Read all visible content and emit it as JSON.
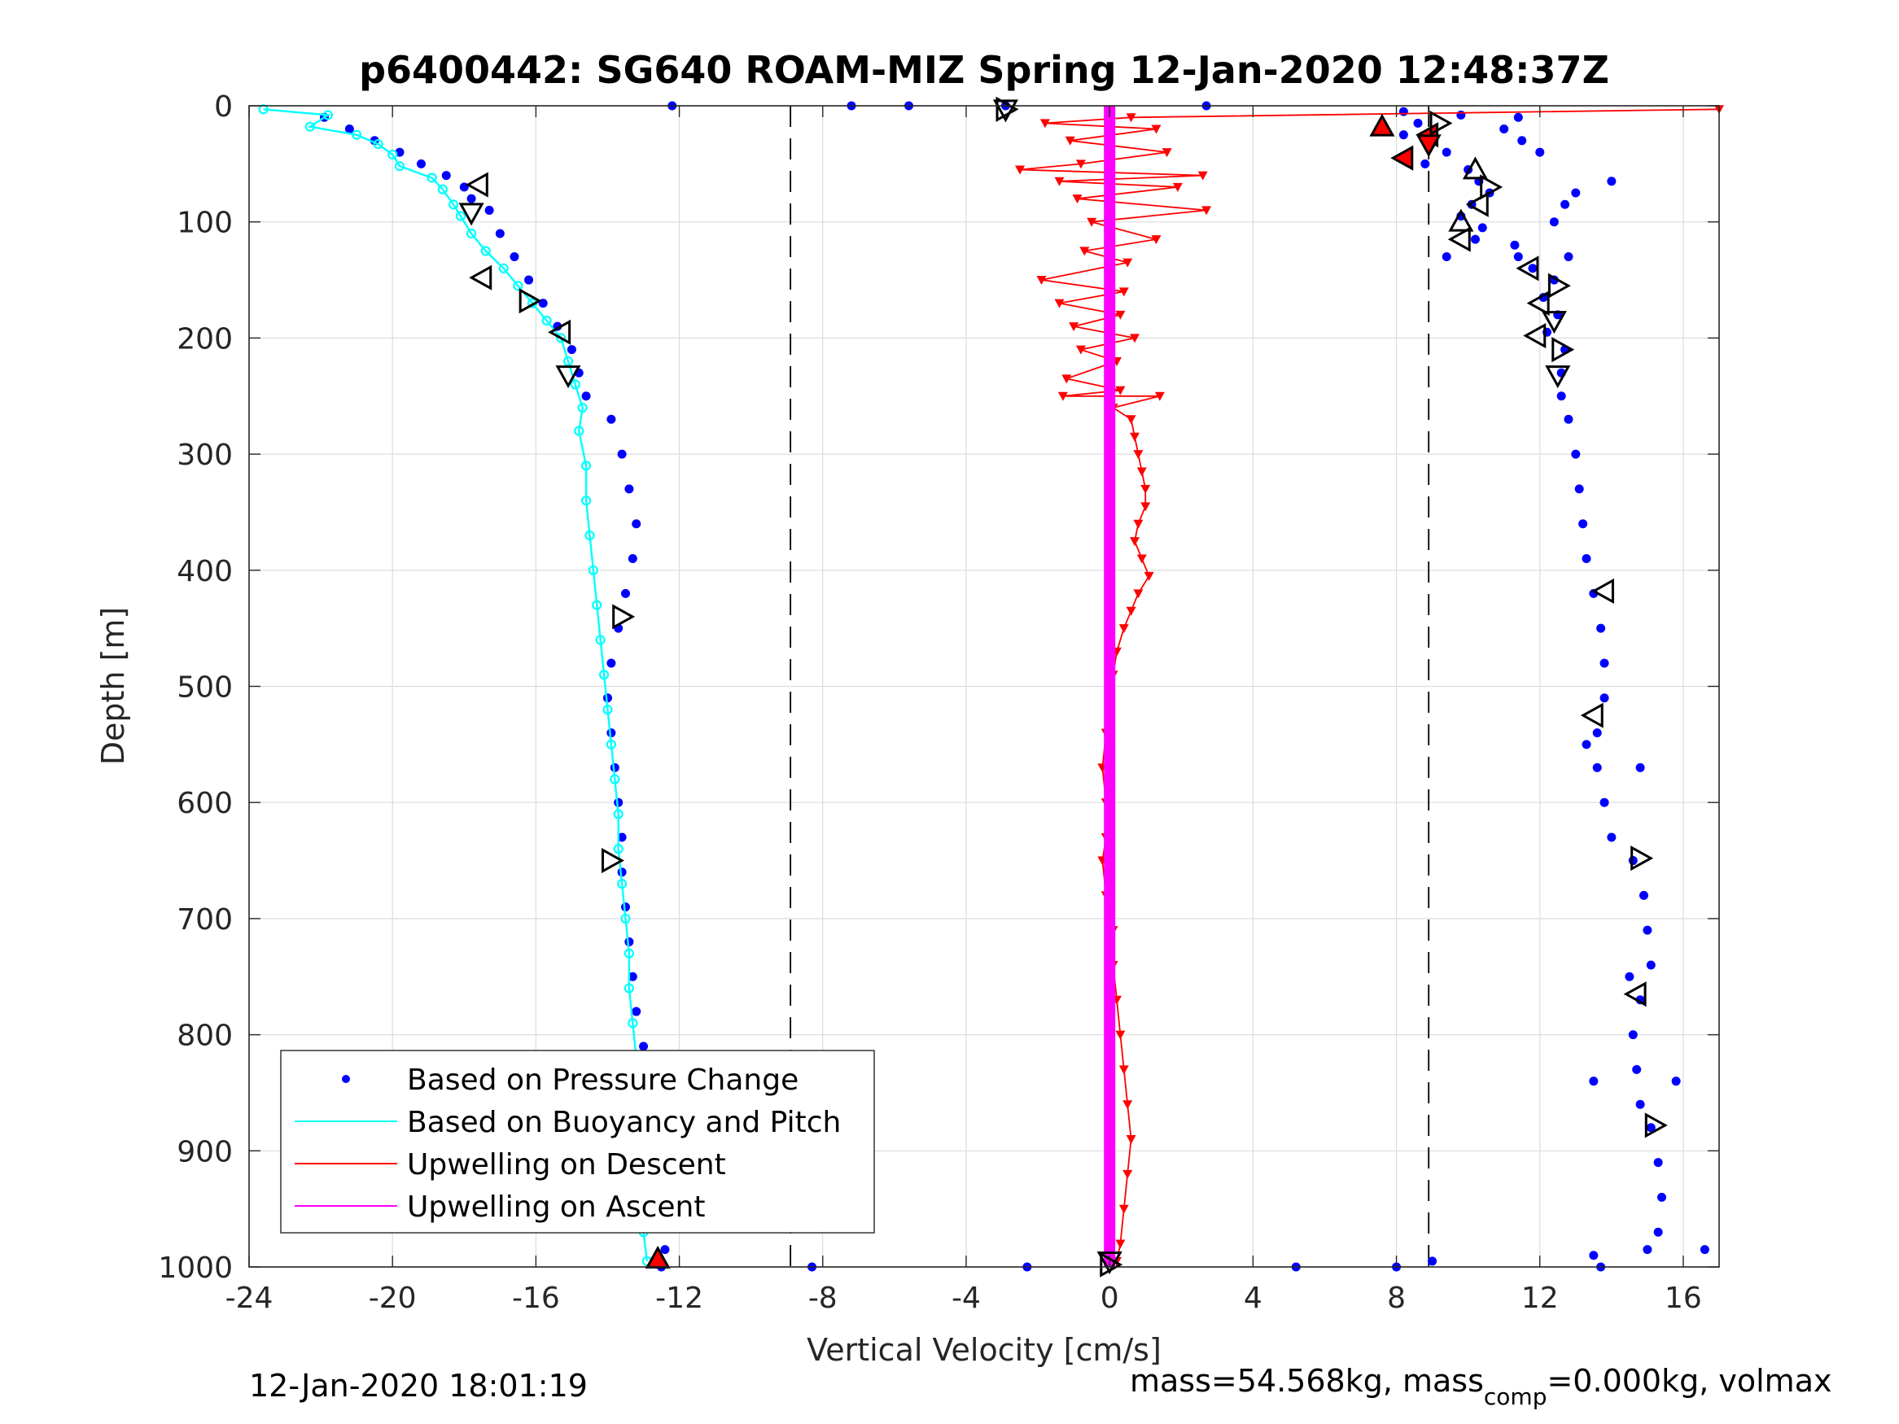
{
  "chart_data": {
    "type": "scatter",
    "title": "p6400442: SG640 ROAM-MIZ Spring 12-Jan-2020 12:48:37Z",
    "xlabel": "Vertical Velocity [cm/s]",
    "ylabel": "Depth [m]",
    "xlim": [
      -24,
      17
    ],
    "ylim": [
      1000,
      0
    ],
    "y_reversed": true,
    "grid": true,
    "xticks": [
      "-24",
      "-20",
      "-16",
      "-12",
      "-8",
      "-4",
      "0",
      "4",
      "8",
      "12",
      "16"
    ],
    "yticks": [
      "0",
      "100",
      "200",
      "300",
      "400",
      "500",
      "600",
      "700",
      "800",
      "900",
      "1000"
    ],
    "reference_lines_x": [
      -8.9,
      8.9
    ],
    "legend": {
      "placement": "bottom-left",
      "entries": [
        {
          "label": "Based on Pressure Change",
          "color": "#0000ff",
          "marker": "dot"
        },
        {
          "label": "Based on Buoyancy and Pitch",
          "color": "#00ffff",
          "marker": "line"
        },
        {
          "label": "Upwelling on Descent",
          "color": "#ff0000",
          "marker": "line"
        },
        {
          "label": "Upwelling on Ascent",
          "color": "#ff00ff",
          "marker": "line"
        }
      ]
    },
    "series": [
      {
        "name": "Based on Pressure Change",
        "color": "#0000ff",
        "style": "dots",
        "points": [
          [
            -21.9,
            10
          ],
          [
            -21.2,
            20
          ],
          [
            -20.5,
            30
          ],
          [
            -19.8,
            40
          ],
          [
            -19.2,
            50
          ],
          [
            -18.5,
            60
          ],
          [
            -18.0,
            70
          ],
          [
            -17.8,
            80
          ],
          [
            -17.3,
            90
          ],
          [
            -17.0,
            110
          ],
          [
            -16.6,
            130
          ],
          [
            -16.2,
            150
          ],
          [
            -15.8,
            170
          ],
          [
            -15.4,
            190
          ],
          [
            -15.0,
            210
          ],
          [
            -14.8,
            230
          ],
          [
            -14.6,
            250
          ],
          [
            -13.9,
            270
          ],
          [
            -13.6,
            300
          ],
          [
            -13.4,
            330
          ],
          [
            -13.2,
            360
          ],
          [
            -13.3,
            390
          ],
          [
            -13.5,
            420
          ],
          [
            -13.7,
            450
          ],
          [
            -13.9,
            480
          ],
          [
            -14.0,
            510
          ],
          [
            -13.9,
            540
          ],
          [
            -13.8,
            570
          ],
          [
            -13.7,
            600
          ],
          [
            -13.6,
            630
          ],
          [
            -13.6,
            660
          ],
          [
            -13.5,
            690
          ],
          [
            -13.4,
            720
          ],
          [
            -13.3,
            750
          ],
          [
            -13.2,
            780
          ],
          [
            -13.0,
            810
          ],
          [
            -12.9,
            840
          ],
          [
            -12.8,
            870
          ],
          [
            -12.7,
            900
          ],
          [
            -12.6,
            930
          ],
          [
            -12.5,
            960
          ],
          [
            -12.4,
            985
          ],
          [
            -12.5,
            1000
          ],
          [
            -12.2,
            0
          ],
          [
            -8.3,
            1000
          ],
          [
            -7.2,
            0
          ],
          [
            -5.6,
            0
          ],
          [
            -2.9,
            0
          ],
          [
            -2.3,
            1000
          ],
          [
            5.2,
            1000
          ],
          [
            2.7,
            0
          ],
          [
            8.0,
            1000
          ],
          [
            9.0,
            995
          ],
          [
            16.6,
            985
          ],
          [
            13.5,
            990
          ],
          [
            8.2,
            5
          ],
          [
            8.6,
            15
          ],
          [
            8.2,
            25
          ],
          [
            8.9,
            30
          ],
          [
            9.4,
            40
          ],
          [
            8.8,
            50
          ],
          [
            10.0,
            55
          ],
          [
            10.3,
            65
          ],
          [
            10.6,
            75
          ],
          [
            10.1,
            85
          ],
          [
            9.8,
            95
          ],
          [
            10.4,
            105
          ],
          [
            10.2,
            115
          ],
          [
            11.4,
            130
          ],
          [
            11.8,
            140
          ],
          [
            12.4,
            150
          ],
          [
            12.1,
            165
          ],
          [
            12.5,
            180
          ],
          [
            12.2,
            195
          ],
          [
            12.7,
            210
          ],
          [
            12.6,
            230
          ],
          [
            12.6,
            250
          ],
          [
            12.8,
            270
          ],
          [
            13.0,
            300
          ],
          [
            13.1,
            330
          ],
          [
            13.2,
            360
          ],
          [
            13.3,
            390
          ],
          [
            13.5,
            420
          ],
          [
            13.7,
            450
          ],
          [
            13.8,
            480
          ],
          [
            13.8,
            510
          ],
          [
            13.6,
            540
          ],
          [
            13.6,
            570
          ],
          [
            13.8,
            600
          ],
          [
            14.0,
            630
          ],
          [
            14.6,
            650
          ],
          [
            14.9,
            680
          ],
          [
            15.0,
            710
          ],
          [
            15.1,
            740
          ],
          [
            14.8,
            770
          ],
          [
            14.6,
            800
          ],
          [
            14.7,
            830
          ],
          [
            14.8,
            860
          ],
          [
            15.1,
            880
          ],
          [
            15.3,
            910
          ],
          [
            15.4,
            940
          ],
          [
            15.3,
            970
          ],
          [
            15.0,
            985
          ],
          [
            13.5,
            840
          ],
          [
            14.5,
            750
          ],
          [
            15.8,
            840
          ],
          [
            13.7,
            1000
          ],
          [
            14.8,
            570
          ],
          [
            13.3,
            550
          ],
          [
            7.5,
            20
          ],
          [
            9.8,
            8
          ],
          [
            11.0,
            20
          ],
          [
            11.5,
            30
          ],
          [
            12.0,
            40
          ],
          [
            11.4,
            10
          ],
          [
            14.0,
            65
          ],
          [
            13.0,
            75
          ],
          [
            12.4,
            100
          ],
          [
            9.4,
            130
          ],
          [
            12.7,
            85
          ],
          [
            11.3,
            120
          ],
          [
            12.8,
            130
          ]
        ]
      },
      {
        "name": "Based on Buoyancy and Pitch",
        "color": "#00ffff",
        "style": "line-dots",
        "points": [
          [
            -23.6,
            3
          ],
          [
            -21.8,
            8
          ],
          [
            -22.3,
            18
          ],
          [
            -21.0,
            25
          ],
          [
            -20.4,
            33
          ],
          [
            -20.0,
            42
          ],
          [
            -19.8,
            52
          ],
          [
            -18.9,
            62
          ],
          [
            -18.6,
            72
          ],
          [
            -18.3,
            85
          ],
          [
            -18.1,
            95
          ],
          [
            -17.8,
            110
          ],
          [
            -17.4,
            125
          ],
          [
            -16.9,
            140
          ],
          [
            -16.5,
            155
          ],
          [
            -16.1,
            170
          ],
          [
            -15.7,
            185
          ],
          [
            -15.3,
            200
          ],
          [
            -15.1,
            220
          ],
          [
            -14.9,
            240
          ],
          [
            -14.7,
            260
          ],
          [
            -14.8,
            280
          ],
          [
            -14.6,
            310
          ],
          [
            -14.6,
            340
          ],
          [
            -14.5,
            370
          ],
          [
            -14.4,
            400
          ],
          [
            -14.3,
            430
          ],
          [
            -14.2,
            460
          ],
          [
            -14.1,
            490
          ],
          [
            -14.0,
            520
          ],
          [
            -13.9,
            550
          ],
          [
            -13.8,
            580
          ],
          [
            -13.7,
            610
          ],
          [
            -13.7,
            640
          ],
          [
            -13.6,
            670
          ],
          [
            -13.5,
            700
          ],
          [
            -13.4,
            730
          ],
          [
            -13.4,
            760
          ],
          [
            -13.3,
            790
          ],
          [
            -13.2,
            820
          ],
          [
            -13.2,
            850
          ],
          [
            -13.1,
            880
          ],
          [
            -13.0,
            910
          ],
          [
            -13.0,
            940
          ],
          [
            -13.0,
            970
          ],
          [
            -12.9,
            995
          ]
        ]
      },
      {
        "name": "Upwelling on Descent",
        "color": "#ff0000",
        "style": "line-triangles",
        "points": [
          [
            17.0,
            3
          ],
          [
            0.6,
            10
          ],
          [
            -1.8,
            15
          ],
          [
            1.3,
            20
          ],
          [
            -1.1,
            30
          ],
          [
            1.6,
            40
          ],
          [
            -0.8,
            50
          ],
          [
            -2.5,
            55
          ],
          [
            2.6,
            60
          ],
          [
            -1.4,
            65
          ],
          [
            1.9,
            70
          ],
          [
            -0.9,
            80
          ],
          [
            2.7,
            90
          ],
          [
            -0.5,
            100
          ],
          [
            1.3,
            115
          ],
          [
            -0.7,
            125
          ],
          [
            0.5,
            135
          ],
          [
            -1.9,
            150
          ],
          [
            0.4,
            160
          ],
          [
            -1.4,
            170
          ],
          [
            0.3,
            180
          ],
          [
            -1.0,
            190
          ],
          [
            0.7,
            200
          ],
          [
            -0.8,
            210
          ],
          [
            0.2,
            220
          ],
          [
            -1.2,
            235
          ],
          [
            0.3,
            245
          ],
          [
            -1.3,
            250
          ],
          [
            1.4,
            250
          ],
          [
            0.1,
            260
          ],
          [
            0.6,
            270
          ],
          [
            0.7,
            285
          ],
          [
            0.8,
            300
          ],
          [
            0.9,
            315
          ],
          [
            1.0,
            330
          ],
          [
            1.0,
            345
          ],
          [
            0.8,
            360
          ],
          [
            0.7,
            375
          ],
          [
            0.9,
            390
          ],
          [
            1.1,
            405
          ],
          [
            0.8,
            420
          ],
          [
            0.6,
            435
          ],
          [
            0.4,
            450
          ],
          [
            0.2,
            470
          ],
          [
            0.1,
            490
          ],
          [
            0.0,
            510
          ],
          [
            -0.1,
            540
          ],
          [
            -0.2,
            570
          ],
          [
            -0.1,
            600
          ],
          [
            -0.1,
            630
          ],
          [
            -0.2,
            650
          ],
          [
            -0.1,
            680
          ],
          [
            0.1,
            710
          ],
          [
            0.1,
            740
          ],
          [
            0.2,
            770
          ],
          [
            0.3,
            800
          ],
          [
            0.4,
            830
          ],
          [
            0.5,
            860
          ],
          [
            0.6,
            890
          ],
          [
            0.5,
            920
          ],
          [
            0.4,
            950
          ],
          [
            0.3,
            980
          ],
          [
            0.2,
            995
          ]
        ]
      },
      {
        "name": "Upwelling on Ascent",
        "color": "#ff00ff",
        "style": "thick-line",
        "points": [
          [
            0.0,
            0
          ],
          [
            0.0,
            100
          ],
          [
            0.0,
            200
          ],
          [
            0.0,
            300
          ],
          [
            0.0,
            400
          ],
          [
            0.0,
            500
          ],
          [
            0.0,
            600
          ],
          [
            0.0,
            700
          ],
          [
            0.0,
            800
          ],
          [
            0.0,
            900
          ],
          [
            0.0,
            1000
          ]
        ]
      }
    ],
    "markers": [
      {
        "x": -17.6,
        "y": 68,
        "kind": "left",
        "fill": "none"
      },
      {
        "x": -17.8,
        "y": 92,
        "kind": "down",
        "fill": "none"
      },
      {
        "x": -17.5,
        "y": 148,
        "kind": "left",
        "fill": "none"
      },
      {
        "x": -16.2,
        "y": 168,
        "kind": "right",
        "fill": "none"
      },
      {
        "x": -15.3,
        "y": 195,
        "kind": "left",
        "fill": "none"
      },
      {
        "x": -15.1,
        "y": 232,
        "kind": "down",
        "fill": "none"
      },
      {
        "x": -13.6,
        "y": 440,
        "kind": "right",
        "fill": "none"
      },
      {
        "x": -13.9,
        "y": 650,
        "kind": "right",
        "fill": "none"
      },
      {
        "x": -12.6,
        "y": 993,
        "kind": "up",
        "fill": "#ff0000"
      },
      {
        "x": -2.9,
        "y": 3,
        "kind": "right",
        "fill": "none"
      },
      {
        "x": -2.9,
        "y": 3,
        "kind": "down",
        "fill": "none"
      },
      {
        "x": 0.0,
        "y": 995,
        "kind": "down",
        "fill": "none"
      },
      {
        "x": 0.0,
        "y": 998,
        "kind": "right",
        "fill": "none"
      },
      {
        "x": 7.6,
        "y": 18,
        "kind": "up",
        "fill": "#ff0000"
      },
      {
        "x": 8.9,
        "y": 25,
        "kind": "left",
        "fill": "#ff0000"
      },
      {
        "x": 8.2,
        "y": 45,
        "kind": "left",
        "fill": "#ff0000"
      },
      {
        "x": 8.9,
        "y": 33,
        "kind": "down",
        "fill": "#ff0000"
      },
      {
        "x": 9.2,
        "y": 15,
        "kind": "right",
        "fill": "none"
      },
      {
        "x": 10.2,
        "y": 55,
        "kind": "up",
        "fill": "none"
      },
      {
        "x": 10.6,
        "y": 70,
        "kind": "right",
        "fill": "none"
      },
      {
        "x": 10.3,
        "y": 85,
        "kind": "left",
        "fill": "none"
      },
      {
        "x": 9.8,
        "y": 100,
        "kind": "up",
        "fill": "none"
      },
      {
        "x": 9.8,
        "y": 115,
        "kind": "left",
        "fill": "none"
      },
      {
        "x": 11.7,
        "y": 140,
        "kind": "left",
        "fill": "none"
      },
      {
        "x": 12.5,
        "y": 155,
        "kind": "right",
        "fill": "none"
      },
      {
        "x": 12.0,
        "y": 170,
        "kind": "left",
        "fill": "none"
      },
      {
        "x": 12.4,
        "y": 185,
        "kind": "down",
        "fill": "none"
      },
      {
        "x": 11.9,
        "y": 198,
        "kind": "left",
        "fill": "none"
      },
      {
        "x": 12.6,
        "y": 210,
        "kind": "right",
        "fill": "none"
      },
      {
        "x": 12.5,
        "y": 232,
        "kind": "down",
        "fill": "none"
      },
      {
        "x": 13.8,
        "y": 418,
        "kind": "left",
        "fill": "none"
      },
      {
        "x": 13.5,
        "y": 525,
        "kind": "left",
        "fill": "none"
      },
      {
        "x": 14.8,
        "y": 648,
        "kind": "right",
        "fill": "none"
      },
      {
        "x": 14.7,
        "y": 765,
        "kind": "left",
        "fill": "none"
      },
      {
        "x": 15.2,
        "y": 878,
        "kind": "right",
        "fill": "none"
      }
    ]
  },
  "footer": {
    "timestamp": "12-Jan-2020 18:01:19",
    "mass_prefix": "mass=54.568kg, mass",
    "mass_sub": "comp",
    "mass_suffix": "=0.000kg, volmax"
  }
}
